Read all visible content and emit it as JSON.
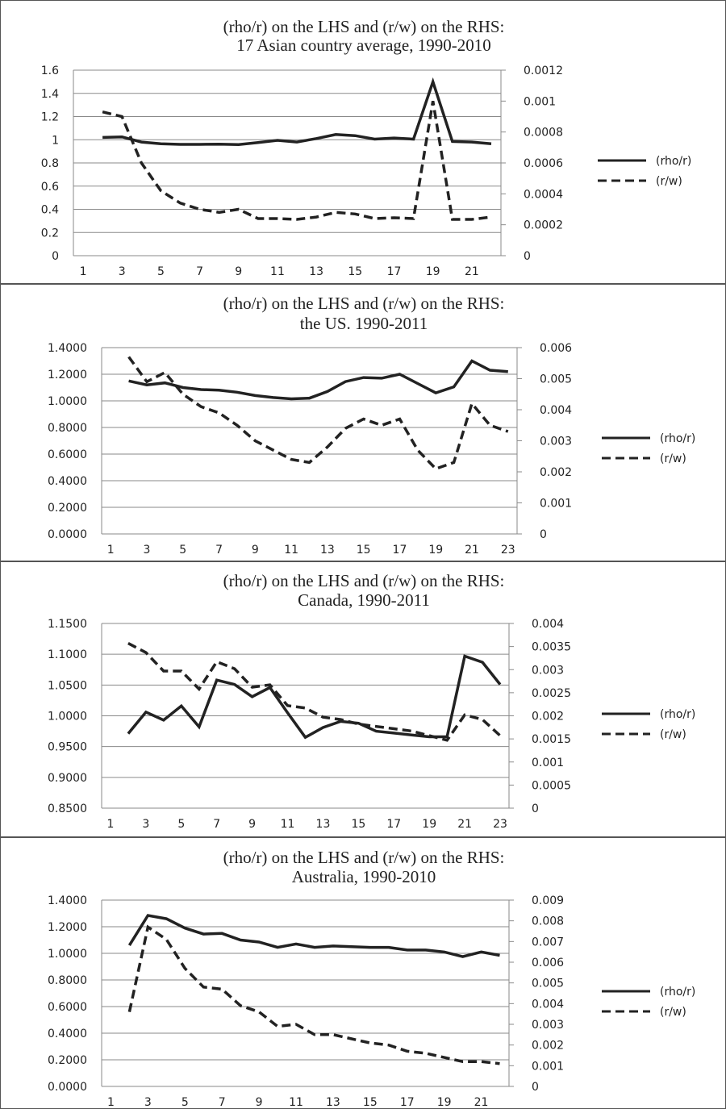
{
  "charts": [
    {
      "title_line1": "(rho/r) on the LHS and (r/w) on the RHS:",
      "title_line2": "17 Asian country average, 1990-2010",
      "x_ticks": [
        "1",
        "3",
        "5",
        "7",
        "9",
        "11",
        "13",
        "15",
        "17",
        "19",
        "21"
      ],
      "left_ticks": [
        "0",
        "0.2",
        "0.4",
        "0.6",
        "0.8",
        "1",
        "1.2",
        "1.4",
        "1.6"
      ],
      "right_ticks": [
        "0",
        "0.0002",
        "0.0004",
        "0.0006",
        "0.0008",
        "0.001",
        "0.0012"
      ],
      "legend": [
        "(rho/r)",
        "(r/w)"
      ]
    },
    {
      "title_line1": "(rho/r) on the LHS and (r/w) on the RHS:",
      "title_line2": "the US. 1990-2011",
      "x_ticks": [
        "1",
        "3",
        "5",
        "7",
        "9",
        "11",
        "13",
        "15",
        "17",
        "19",
        "21",
        "23"
      ],
      "left_ticks": [
        "0.0000",
        "0.2000",
        "0.4000",
        "0.6000",
        "0.8000",
        "1.0000",
        "1.2000",
        "1.4000"
      ],
      "right_ticks": [
        "0",
        "0.001",
        "0.002",
        "0.003",
        "0.004",
        "0.005",
        "0.006"
      ],
      "legend": [
        "(rho/r)",
        "(r/w)"
      ]
    },
    {
      "title_line1": "(rho/r) on the LHS and (r/w) on the RHS:",
      "title_line2": "Canada, 1990-2011",
      "x_ticks": [
        "1",
        "3",
        "5",
        "7",
        "9",
        "11",
        "13",
        "15",
        "17",
        "19",
        "21",
        "23"
      ],
      "left_ticks": [
        "0.8500",
        "0.9000",
        "0.9500",
        "1.0000",
        "1.0500",
        "1.1000",
        "1.1500"
      ],
      "right_ticks": [
        "0",
        "0.0005",
        "0.001",
        "0.0015",
        "0.002",
        "0.0025",
        "0.003",
        "0.0035",
        "0.004"
      ],
      "legend": [
        "(rho/r)",
        "(r/w)"
      ]
    },
    {
      "title_line1": "(rho/r) on the LHS and (r/w) on the RHS:",
      "title_line2": "Australia, 1990-2010",
      "x_ticks": [
        "1",
        "3",
        "5",
        "7",
        "9",
        "11",
        "13",
        "15",
        "17",
        "19",
        "21"
      ],
      "left_ticks": [
        "0.0000",
        "0.2000",
        "0.4000",
        "0.6000",
        "0.8000",
        "1.0000",
        "1.2000",
        "1.4000"
      ],
      "right_ticks": [
        "0",
        "0.001",
        "0.002",
        "0.003",
        "0.004",
        "0.005",
        "0.006",
        "0.007",
        "0.008",
        "0.009"
      ],
      "legend": [
        "(rho/r)",
        "(r/w)"
      ]
    }
  ],
  "chart_data": [
    {
      "type": "line",
      "title": "(rho/r) on the LHS and (r/w) on the RHS: 17 Asian country average, 1990-2010",
      "x": [
        2,
        3,
        4,
        5,
        6,
        7,
        8,
        9,
        10,
        11,
        12,
        13,
        14,
        15,
        16,
        17,
        18,
        19,
        20,
        21,
        22
      ],
      "xlim": [
        0.5,
        22.5
      ],
      "ylim_left": [
        0,
        1.6
      ],
      "ylim_right": [
        0,
        0.0012
      ],
      "grid": true,
      "legend_position": "right",
      "line_color": "#222222",
      "series": [
        {
          "name": "(rho/r)",
          "axis": "left",
          "style": "solid",
          "values": [
            1.02,
            1.025,
            0.98,
            0.965,
            0.96,
            0.96,
            0.962,
            0.958,
            0.975,
            0.995,
            0.98,
            1.01,
            1.045,
            1.035,
            1.005,
            1.015,
            1.005,
            1.5,
            0.985,
            0.98,
            0.965
          ]
        },
        {
          "name": "(r/w)",
          "axis": "right",
          "style": "dashed",
          "values": [
            0.00093,
            0.0009,
            0.0006,
            0.00042,
            0.00034,
            0.0003,
            0.00028,
            0.0003,
            0.00024,
            0.00024,
            0.000235,
            0.00025,
            0.00028,
            0.00027,
            0.00024,
            0.000245,
            0.00024,
            0.001,
            0.000235,
            0.000235,
            0.00025
          ]
        }
      ]
    },
    {
      "type": "line",
      "title": "(rho/r) on the LHS and (r/w) on the RHS: the US. 1990-2011",
      "x": [
        2,
        3,
        4,
        5,
        6,
        7,
        8,
        9,
        10,
        11,
        12,
        13,
        14,
        15,
        16,
        17,
        18,
        19,
        20,
        21,
        22,
        23
      ],
      "xlim": [
        0.5,
        23.5
      ],
      "ylim_left": [
        0,
        1.4
      ],
      "ylim_right": [
        0,
        0.006
      ],
      "grid": true,
      "legend_position": "right",
      "line_color": "#222222",
      "series": [
        {
          "name": "(rho/r)",
          "axis": "left",
          "style": "solid",
          "values": [
            1.15,
            1.12,
            1.135,
            1.1,
            1.085,
            1.08,
            1.065,
            1.04,
            1.025,
            1.015,
            1.02,
            1.07,
            1.145,
            1.175,
            1.17,
            1.2,
            1.13,
            1.06,
            1.105,
            1.3,
            1.23,
            1.22
          ]
        },
        {
          "name": "(r/w)",
          "axis": "right",
          "style": "dashed",
          "values": [
            0.0057,
            0.0049,
            0.0052,
            0.0045,
            0.0041,
            0.0039,
            0.0035,
            0.003,
            0.0027,
            0.0024,
            0.0023,
            0.0028,
            0.0034,
            0.0037,
            0.0035,
            0.0037,
            0.0027,
            0.0021,
            0.0023,
            0.0042,
            0.0035,
            0.0033
          ]
        }
      ]
    },
    {
      "type": "line",
      "title": "(rho/r) on the LHS and (r/w) on the RHS: Canada, 1990-2011",
      "x": [
        2,
        3,
        4,
        5,
        6,
        7,
        8,
        9,
        10,
        11,
        12,
        13,
        14,
        15,
        16,
        17,
        18,
        19,
        20,
        21,
        22,
        23
      ],
      "xlim": [
        0.5,
        23.5
      ],
      "ylim_left": [
        0.85,
        1.15
      ],
      "ylim_right": [
        0,
        0.004
      ],
      "grid": true,
      "legend_position": "right",
      "line_color": "#222222",
      "series": [
        {
          "name": "(rho/r)",
          "axis": "left",
          "style": "solid",
          "values": [
            0.971,
            1.006,
            0.993,
            1.016,
            0.982,
            1.058,
            1.051,
            1.031,
            1.046,
            1.005,
            0.965,
            0.981,
            0.991,
            0.988,
            0.975,
            0.972,
            0.969,
            0.966,
            0.966,
            1.097,
            1.087,
            1.051
          ]
        },
        {
          "name": "(r/w)",
          "axis": "right",
          "style": "dashed",
          "values": [
            0.00357,
            0.00337,
            0.00297,
            0.00297,
            0.00258,
            0.00317,
            0.00302,
            0.00262,
            0.00267,
            0.00222,
            0.00217,
            0.00197,
            0.00192,
            0.00182,
            0.00177,
            0.00172,
            0.00167,
            0.00157,
            0.00147,
            0.00202,
            0.00192,
            0.00157
          ]
        }
      ]
    },
    {
      "type": "line",
      "title": "(rho/r) on the LHS and (r/w) on the RHS: Australia, 1990-2010",
      "x": [
        2,
        3,
        4,
        5,
        6,
        7,
        8,
        9,
        10,
        11,
        12,
        13,
        14,
        15,
        16,
        17,
        18,
        19,
        20,
        21,
        22
      ],
      "xlim": [
        0.5,
        22.5
      ],
      "ylim_left": [
        0,
        1.4
      ],
      "ylim_right": [
        0,
        0.009
      ],
      "grid": true,
      "legend_position": "right",
      "line_color": "#222222",
      "series": [
        {
          "name": "(rho/r)",
          "axis": "left",
          "style": "solid",
          "values": [
            1.06,
            1.285,
            1.26,
            1.19,
            1.145,
            1.15,
            1.1,
            1.085,
            1.045,
            1.07,
            1.045,
            1.055,
            1.05,
            1.045,
            1.045,
            1.025,
            1.025,
            1.01,
            0.975,
            1.01,
            0.985
          ]
        },
        {
          "name": "(r/w)",
          "axis": "right",
          "style": "dashed",
          "values": [
            0.0036,
            0.0077,
            0.0071,
            0.0057,
            0.0048,
            0.0047,
            0.0039,
            0.0036,
            0.0029,
            0.003,
            0.0025,
            0.0025,
            0.0023,
            0.0021,
            0.002,
            0.0017,
            0.0016,
            0.0014,
            0.0012,
            0.0012,
            0.0011
          ]
        }
      ]
    }
  ]
}
